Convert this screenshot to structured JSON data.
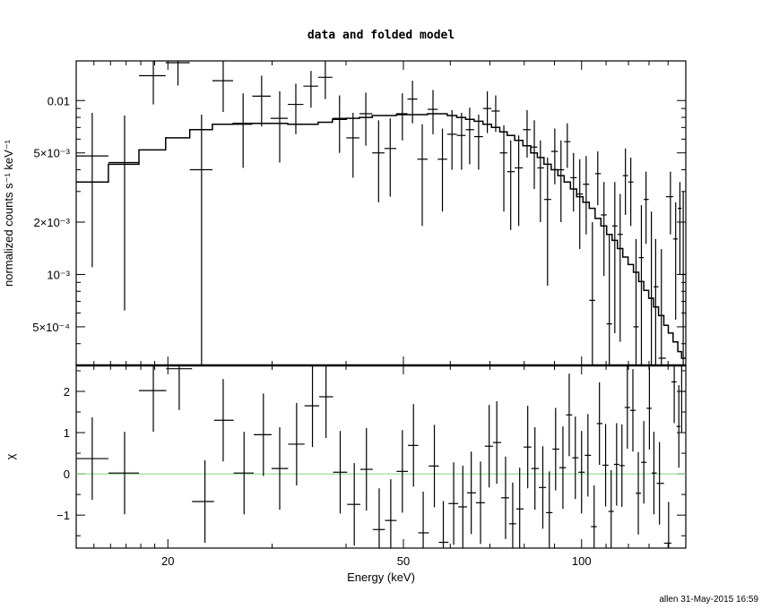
{
  "chart_data": [
    {
      "type": "line",
      "panel": "top",
      "title": "data and folded model",
      "ylabel": "normalized counts s⁻¹ keV⁻¹",
      "xscale": "log",
      "yscale": "log",
      "xlim": [
        14,
        150
      ],
      "ylim": [
        0.0003,
        0.0169
      ],
      "ytick_labels": [
        {
          "value": 0.01,
          "label": "0.01"
        },
        {
          "value": 0.005,
          "label": "5×10⁻³"
        },
        {
          "value": 0.002,
          "label": "2×10⁻³"
        },
        {
          "value": 0.001,
          "label": "10⁻³"
        },
        {
          "value": 0.0005,
          "label": "5×10⁻⁴"
        }
      ],
      "data_columns": [
        "energy_keV",
        "counts",
        "err_low",
        "err_high"
      ],
      "data": [
        [
          14.9,
          0.0048,
          0.0011,
          0.0085
        ],
        [
          16.9,
          0.0044,
          0.00062,
          0.0082
        ],
        [
          18.9,
          0.0139,
          0.0095,
          0.0169
        ],
        [
          20.8,
          0.0165,
          0.0122,
          0.0169
        ],
        [
          22.8,
          0.004,
          0.0002,
          0.0083
        ],
        [
          24.8,
          0.013,
          0.0086,
          0.0169
        ],
        [
          26.8,
          0.0073,
          0.0041,
          0.011
        ],
        [
          28.8,
          0.0106,
          0.0071,
          0.0139
        ],
        [
          30.9,
          0.0079,
          0.0044,
          0.0113
        ],
        [
          32.9,
          0.0095,
          0.0064,
          0.0125
        ],
        [
          34.9,
          0.0121,
          0.0091,
          0.0148
        ],
        [
          36.9,
          0.0136,
          0.0102,
          0.0169
        ],
        [
          39.0,
          0.0079,
          0.005,
          0.0107
        ],
        [
          41.1,
          0.0061,
          0.0036,
          0.0085
        ],
        [
          43.2,
          0.0084,
          0.0055,
          0.0111
        ],
        [
          45.4,
          0.005,
          0.0026,
          0.0077
        ],
        [
          47.5,
          0.0053,
          0.0028,
          0.0079
        ],
        [
          49.8,
          0.0084,
          0.0059,
          0.011
        ],
        [
          51.8,
          0.0102,
          0.0074,
          0.013
        ],
        [
          53.8,
          0.0046,
          0.0019,
          0.0073
        ],
        [
          56.1,
          0.0089,
          0.0064,
          0.0115
        ],
        [
          58.2,
          0.0046,
          0.0023,
          0.0069
        ],
        [
          60.4,
          0.0064,
          0.004,
          0.0088
        ],
        [
          62.7,
          0.0063,
          0.004,
          0.0085
        ],
        [
          64.7,
          0.0068,
          0.0043,
          0.0091
        ],
        [
          67.0,
          0.0062,
          0.004,
          0.0083
        ],
        [
          69.3,
          0.009,
          0.0065,
          0.0113
        ],
        [
          71.6,
          0.0087,
          0.0066,
          0.0107
        ],
        [
          73.9,
          0.005,
          0.0023,
          0.0072
        ],
        [
          75.9,
          0.0039,
          0.0018,
          0.0059
        ],
        [
          78.3,
          0.0041,
          0.0019,
          0.0063
        ],
        [
          80.9,
          0.0068,
          0.0047,
          0.0088
        ],
        [
          83.2,
          0.0054,
          0.0031,
          0.0077
        ],
        [
          85.2,
          0.0041,
          0.002,
          0.0059
        ],
        [
          87.6,
          0.0027,
          0.00086,
          0.0047
        ],
        [
          90.1,
          0.0051,
          0.0033,
          0.0069
        ],
        [
          92.3,
          0.004,
          0.002,
          0.0059
        ],
        [
          94.6,
          0.0058,
          0.0041,
          0.0074
        ],
        [
          96.9,
          0.0036,
          0.0023,
          0.005
        ],
        [
          99.3,
          0.0029,
          0.0014,
          0.0046
        ],
        [
          101.8,
          0.0033,
          0.0017,
          0.0048
        ],
        [
          104.3,
          0.00071,
          0.0001,
          0.002
        ],
        [
          106.5,
          0.0038,
          0.0025,
          0.0051
        ],
        [
          109.1,
          0.0022,
          0.00098,
          0.0034
        ],
        [
          111.4,
          0.00052,
          0.0001,
          0.0017
        ],
        [
          113.8,
          0.0019,
          0.00046,
          0.0034
        ],
        [
          116.2,
          0.0017,
          0.00041,
          0.0029
        ],
        [
          118.6,
          0.0037,
          0.0022,
          0.0053
        ],
        [
          121.1,
          0.0034,
          0.0019,
          0.0047
        ],
        [
          123.6,
          0.0005,
          0.0001,
          0.0016
        ],
        [
          126.2,
          0.00125,
          0.0001,
          0.0025
        ],
        [
          128.5,
          0.0027,
          0.0015,
          0.0039
        ],
        [
          131.2,
          0.00073,
          0.0001,
          0.0023
        ],
        [
          133.4,
          0.00085,
          0.0001,
          0.0016
        ],
        [
          136.4,
          0.00033,
          0.0001,
          0.0014
        ],
        [
          141.3,
          0.0028,
          0.0017,
          0.0039
        ],
        [
          144.2,
          0.0016,
          0.00055,
          0.0026
        ],
        [
          146.6,
          0.0024,
          0.001,
          0.0034
        ],
        [
          148.5,
          0.001,
          0.0001,
          0.003
        ]
      ],
      "model_columns": [
        "energy_keV",
        "model"
      ],
      "model": [
        [
          14.9,
          0.0034
        ],
        [
          16.9,
          0.0043
        ],
        [
          18.9,
          0.0052
        ],
        [
          20.8,
          0.0061
        ],
        [
          22.8,
          0.0068
        ],
        [
          24.8,
          0.0073
        ],
        [
          26.8,
          0.0074
        ],
        [
          28.8,
          0.0074
        ],
        [
          30.9,
          0.0074
        ],
        [
          32.9,
          0.0073
        ],
        [
          34.9,
          0.0073
        ],
        [
          36.9,
          0.0075
        ],
        [
          39.0,
          0.0078
        ],
        [
          41.1,
          0.0079
        ],
        [
          43.2,
          0.008
        ],
        [
          45.4,
          0.0082
        ],
        [
          47.5,
          0.0082
        ],
        [
          49.8,
          0.0083
        ],
        [
          51.8,
          0.0083
        ],
        [
          53.8,
          0.0083
        ],
        [
          56.1,
          0.0084
        ],
        [
          58.2,
          0.0084
        ],
        [
          60.4,
          0.0082
        ],
        [
          62.7,
          0.008
        ],
        [
          64.7,
          0.0078
        ],
        [
          67.0,
          0.0076
        ],
        [
          69.3,
          0.0073
        ],
        [
          71.6,
          0.007
        ],
        [
          73.9,
          0.0066
        ],
        [
          75.9,
          0.0063
        ],
        [
          78.3,
          0.0059
        ],
        [
          80.9,
          0.0055
        ],
        [
          83.2,
          0.005
        ],
        [
          85.2,
          0.0047
        ],
        [
          87.6,
          0.0043
        ],
        [
          90.1,
          0.004
        ],
        [
          92.3,
          0.0037
        ],
        [
          94.6,
          0.0034
        ],
        [
          96.9,
          0.0031
        ],
        [
          99.3,
          0.0028
        ],
        [
          101.8,
          0.0026
        ],
        [
          104.3,
          0.0024
        ],
        [
          106.5,
          0.0021
        ],
        [
          109.1,
          0.0019
        ],
        [
          111.4,
          0.0017
        ],
        [
          113.8,
          0.00157
        ],
        [
          116.2,
          0.00141
        ],
        [
          118.6,
          0.00126
        ],
        [
          121.1,
          0.00114
        ],
        [
          123.6,
          0.00103
        ],
        [
          126.2,
          0.00091
        ],
        [
          128.5,
          0.00081
        ],
        [
          131.2,
          0.00073
        ],
        [
          133.4,
          0.00065
        ],
        [
          136.4,
          0.00058
        ],
        [
          139.0,
          0.00051
        ],
        [
          141.3,
          0.00046
        ],
        [
          144.2,
          0.00041
        ],
        [
          146.6,
          0.00036
        ],
        [
          148.5,
          0.00033
        ]
      ]
    },
    {
      "type": "scatter",
      "panel": "bottom",
      "xlabel": "Energy (keV)",
      "ylabel": "χ",
      "xscale": "log",
      "xlim": [
        14,
        150
      ],
      "ylim": [
        -1.8,
        2.63
      ],
      "xtick_labels": [
        {
          "value": 20,
          "label": "20"
        },
        {
          "value": 50,
          "label": "50"
        },
        {
          "value": 100,
          "label": "100"
        }
      ],
      "ytick_labels": [
        {
          "value": 2,
          "label": "2"
        },
        {
          "value": 1,
          "label": "1"
        },
        {
          "value": 0,
          "label": "0"
        },
        {
          "value": -1,
          "label": "−1"
        }
      ],
      "reference_line": {
        "y": 0,
        "color": "#7fd47f"
      },
      "data_columns": [
        "energy_keV",
        "chi",
        "error"
      ],
      "data": [
        [
          14.9,
          0.37,
          1.0
        ],
        [
          16.9,
          0.02,
          1.0
        ],
        [
          18.9,
          2.02,
          1.0
        ],
        [
          20.9,
          2.55,
          1.0
        ],
        [
          23.1,
          -0.67,
          1.0
        ],
        [
          24.8,
          1.3,
          1.0
        ],
        [
          26.9,
          0.02,
          1.0
        ],
        [
          29.0,
          0.95,
          1.0
        ],
        [
          30.9,
          0.13,
          1.0
        ],
        [
          33.0,
          0.72,
          1.0
        ],
        [
          35.1,
          1.65,
          1.0
        ],
        [
          37.0,
          1.87,
          1.0
        ],
        [
          39.1,
          0.04,
          1.0
        ],
        [
          41.3,
          -0.74,
          1.0
        ],
        [
          43.3,
          0.11,
          1.0
        ],
        [
          45.5,
          -1.35,
          1.0
        ],
        [
          47.6,
          -1.13,
          1.0
        ],
        [
          49.8,
          0.06,
          1.0
        ],
        [
          52.0,
          0.69,
          1.0
        ],
        [
          54.0,
          -1.43,
          1.0
        ],
        [
          56.4,
          0.19,
          1.0
        ],
        [
          58.4,
          -1.66,
          1.0
        ],
        [
          60.8,
          -0.72,
          1.0
        ],
        [
          63.0,
          -0.8,
          1.0
        ],
        [
          65.1,
          -0.46,
          1.0
        ],
        [
          67.5,
          -0.7,
          1.0
        ],
        [
          69.8,
          0.67,
          1.0
        ],
        [
          71.9,
          0.76,
          1.0
        ],
        [
          74.4,
          -0.58,
          1.0
        ],
        [
          76.5,
          -1.21,
          1.0
        ],
        [
          78.6,
          -0.85,
          1.0
        ],
        [
          81.1,
          0.65,
          1.0
        ],
        [
          83.4,
          0.13,
          1.0
        ],
        [
          86.0,
          -0.33,
          1.0
        ],
        [
          88.2,
          -0.94,
          1.0
        ],
        [
          90.4,
          0.6,
          1.0
        ],
        [
          93.0,
          0.15,
          1.0
        ],
        [
          95.3,
          1.43,
          1.0
        ],
        [
          97.6,
          0.39,
          1.0
        ],
        [
          100.0,
          0.04,
          1.0
        ],
        [
          102.5,
          0.45,
          1.0
        ],
        [
          105.0,
          -1.28,
          1.0
        ],
        [
          107.2,
          1.22,
          1.0
        ],
        [
          109.8,
          0.21,
          1.0
        ],
        [
          112.2,
          -0.91,
          1.0
        ],
        [
          114.6,
          0.23,
          1.0
        ],
        [
          117.0,
          0.2,
          1.0
        ],
        [
          119.5,
          1.61,
          1.0
        ],
        [
          122.1,
          1.54,
          1.0
        ],
        [
          124.7,
          -0.47,
          1.0
        ],
        [
          127.4,
          0.28,
          1.0
        ],
        [
          130.2,
          1.59,
          1.0
        ],
        [
          132.5,
          0.02,
          1.0
        ],
        [
          135.4,
          -0.23,
          1.0
        ],
        [
          140.3,
          -1.68,
          1.0
        ],
        [
          143.4,
          2.23,
          1.0
        ],
        [
          146.0,
          1.15,
          1.0
        ],
        [
          147.6,
          2.0,
          1.0
        ]
      ]
    }
  ],
  "footer": "allen 31-May-2015 16:59"
}
